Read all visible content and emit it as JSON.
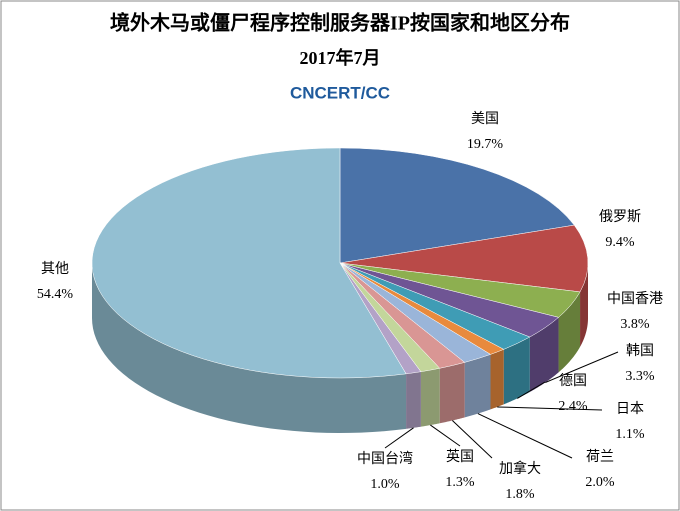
{
  "chart_data": {
    "type": "pie3d",
    "title": "境外木马或僵尸程序控制服务器IP按国家和地区分布",
    "subtitle": "2017年7月",
    "logo": "CNCERT/CC",
    "categories": [
      "美国",
      "俄罗斯",
      "中国香港",
      "韩国",
      "德国",
      "日本",
      "荷兰",
      "加拿大",
      "英国",
      "中国台湾",
      "其他"
    ],
    "values": [
      19.7,
      9.4,
      3.8,
      3.3,
      2.4,
      1.1,
      2.0,
      1.8,
      1.3,
      1.0,
      54.4
    ],
    "value_labels": [
      "19.7%",
      "9.4%",
      "3.8%",
      "3.3%",
      "2.4%",
      "1.1%",
      "2.0%",
      "1.8%",
      "1.3%",
      "1.0%",
      "54.4%"
    ],
    "colors": [
      "#4a72a8",
      "#b94a48",
      "#8daf50",
      "#6f5594",
      "#3f9cb5",
      "#e88a3d",
      "#9ab5d9",
      "#d99694",
      "#c3d69b",
      "#b3a2c7",
      "#93bfd2"
    ]
  }
}
